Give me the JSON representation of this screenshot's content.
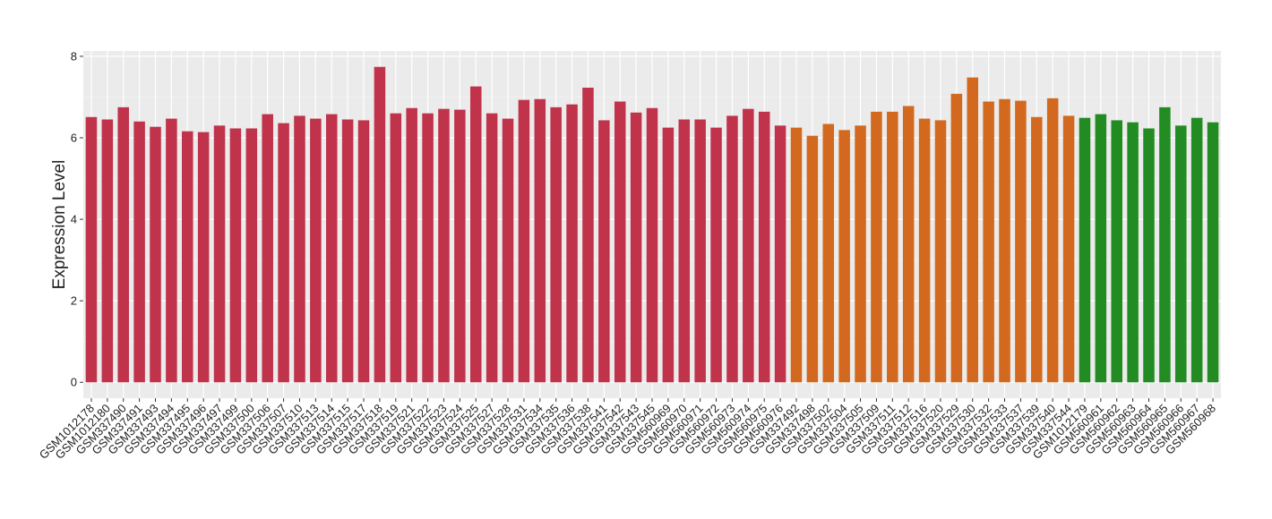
{
  "chart_data": {
    "type": "bar",
    "y_label": "Expression Level",
    "categories": [
      "GSM1012178",
      "GSM1012180",
      "GSM337490",
      "GSM337491",
      "GSM337493",
      "GSM337494",
      "GSM337495",
      "GSM337496",
      "GSM337497",
      "GSM337499",
      "GSM337500",
      "GSM337506",
      "GSM337507",
      "GSM337510",
      "GSM337513",
      "GSM337514",
      "GSM337515",
      "GSM337517",
      "GSM337518",
      "GSM337519",
      "GSM337521",
      "GSM337522",
      "GSM337523",
      "GSM337524",
      "GSM337525",
      "GSM337527",
      "GSM337528",
      "GSM337531",
      "GSM337534",
      "GSM337535",
      "GSM337536",
      "GSM337538",
      "GSM337541",
      "GSM337542",
      "GSM337543",
      "GSM337545",
      "GSM560969",
      "GSM560970",
      "GSM560971",
      "GSM560972",
      "GSM560973",
      "GSM560974",
      "GSM560975",
      "GSM560976",
      "GSM337492",
      "GSM337498",
      "GSM337502",
      "GSM337504",
      "GSM337505",
      "GSM337509",
      "GSM337511",
      "GSM337512",
      "GSM337516",
      "GSM337520",
      "GSM337529",
      "GSM337530",
      "GSM337532",
      "GSM337533",
      "GSM337537",
      "GSM337539",
      "GSM337540",
      "GSM337544",
      "GSM1012179",
      "GSM560961",
      "GSM560962",
      "GSM560963",
      "GSM560964",
      "GSM560965",
      "GSM560966",
      "GSM560967",
      "GSM560968"
    ],
    "values": [
      6.51,
      6.45,
      6.75,
      6.4,
      6.27,
      6.47,
      6.16,
      6.14,
      6.3,
      6.23,
      6.23,
      6.58,
      6.36,
      6.54,
      6.47,
      6.58,
      6.45,
      6.43,
      7.74,
      6.6,
      6.73,
      6.6,
      6.71,
      6.69,
      7.26,
      6.6,
      6.47,
      6.93,
      6.95,
      6.75,
      6.82,
      7.23,
      6.43,
      6.89,
      6.62,
      6.73,
      6.25,
      6.45,
      6.45,
      6.25,
      6.54,
      6.71,
      6.64,
      6.3,
      6.25,
      6.05,
      6.34,
      6.19,
      6.3,
      6.64,
      6.64,
      6.78,
      6.47,
      6.43,
      7.08,
      7.48,
      6.89,
      6.95,
      6.91,
      6.51,
      6.97,
      6.54,
      6.49,
      6.58,
      6.43,
      6.38,
      6.23,
      6.75,
      6.3,
      6.49,
      6.38
    ],
    "colors": [
      "#c0334a",
      "#c0334a",
      "#c0334a",
      "#c0334a",
      "#c0334a",
      "#c0334a",
      "#c0334a",
      "#c0334a",
      "#c0334a",
      "#c0334a",
      "#c0334a",
      "#c0334a",
      "#c0334a",
      "#c0334a",
      "#c0334a",
      "#c0334a",
      "#c0334a",
      "#c0334a",
      "#c0334a",
      "#c0334a",
      "#c0334a",
      "#c0334a",
      "#c0334a",
      "#c0334a",
      "#c0334a",
      "#c0334a",
      "#c0334a",
      "#c0334a",
      "#c0334a",
      "#c0334a",
      "#c0334a",
      "#c0334a",
      "#c0334a",
      "#c0334a",
      "#c0334a",
      "#c0334a",
      "#c0334a",
      "#c0334a",
      "#c0334a",
      "#c0334a",
      "#c0334a",
      "#c0334a",
      "#c0334a",
      "#c0334a",
      "#d2691e",
      "#d2691e",
      "#d2691e",
      "#d2691e",
      "#d2691e",
      "#d2691e",
      "#d2691e",
      "#d2691e",
      "#d2691e",
      "#d2691e",
      "#d2691e",
      "#d2691e",
      "#d2691e",
      "#d2691e",
      "#d2691e",
      "#d2691e",
      "#d2691e",
      "#d2691e",
      "#228b22",
      "#228b22",
      "#228b22",
      "#228b22",
      "#228b22",
      "#228b22",
      "#228b22",
      "#228b22",
      "#228b22"
    ],
    "ylim": [
      -0.39,
      8.13
    ],
    "yticks": [
      0,
      2,
      4,
      6,
      8
    ],
    "grid": true
  }
}
